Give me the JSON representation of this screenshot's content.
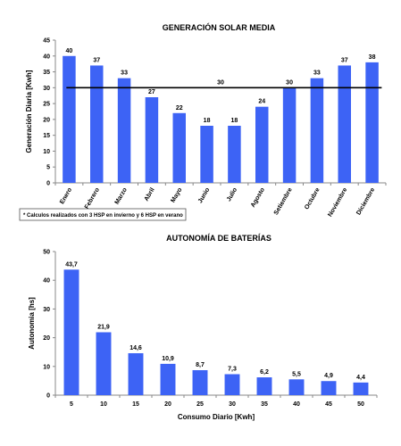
{
  "colors": {
    "bar": "#3d63f5",
    "reference_line": "#000000"
  },
  "chart_data": [
    {
      "type": "bar",
      "title": "GENERACIÓN SOLAR MEDIA",
      "xlabel": "",
      "ylabel": "Generación Diaria [Kwh]",
      "ylim": [
        0,
        45
      ],
      "ytick_step": 5,
      "categories": [
        "Enero",
        "Febrero",
        "Marzo",
        "Abril",
        "Mayo",
        "Junio",
        "Julio",
        "Agosto",
        "Setiembre",
        "Octubre",
        "Noviembre",
        "Diciembre"
      ],
      "values": [
        40,
        37,
        33,
        27,
        22,
        18,
        18,
        24,
        30,
        33,
        37,
        38
      ],
      "labels": [
        "40",
        "37",
        "33",
        "27",
        "22",
        "18",
        "18",
        "24",
        "30",
        "33",
        "37",
        "38"
      ],
      "reference_line": {
        "value": 30,
        "label": "30"
      },
      "note": "* Calculos realizados con 3 HSP en invierno y 6 HSP en verano",
      "grid": false
    },
    {
      "type": "bar",
      "title": "AUTONOMÍA DE BATERÍAS",
      "xlabel": "Consumo Diario [Kwh]",
      "ylabel": "Autonomia [hs]",
      "ylim": [
        0,
        50
      ],
      "ytick_step": 10,
      "categories": [
        "5",
        "10",
        "15",
        "20",
        "25",
        "30",
        "35",
        "40",
        "45",
        "50"
      ],
      "values": [
        43.7,
        21.9,
        14.6,
        10.9,
        8.7,
        7.3,
        6.2,
        5.5,
        4.9,
        4.4
      ],
      "labels": [
        "43,7",
        "21,9",
        "14,6",
        "10,9",
        "8,7",
        "7,3",
        "6,2",
        "5,5",
        "4,9",
        "4,4"
      ],
      "grid": false
    }
  ]
}
